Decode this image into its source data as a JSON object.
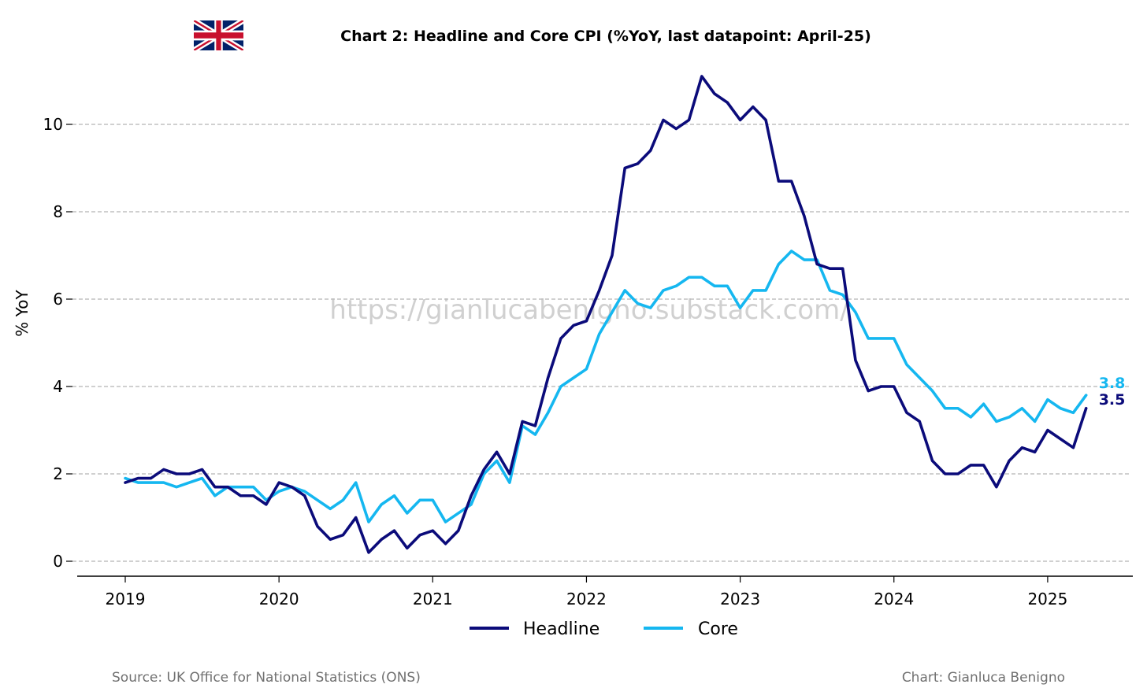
{
  "flag": {
    "icon": "uk-flag-icon",
    "colors": {
      "blue": "#012169",
      "red": "#C8102E",
      "white": "#FFFFFF"
    }
  },
  "footer": {
    "source": "Source: UK Office for National Statistics (ONS)",
    "credit": "Chart: Gianluca Benigno"
  },
  "watermark": "https://gianlucabenigno.substack.com/",
  "chart_data": {
    "type": "line",
    "title": "Chart 2: Headline and Core CPI (%YoY, last datapoint: April-25)",
    "xlabel": "",
    "ylabel": "% YoY",
    "ylim": [
      -0.33,
      11.1
    ],
    "yticks": [
      0,
      2,
      4,
      6,
      8,
      10
    ],
    "xticks": [
      "2019",
      "2020",
      "2021",
      "2022",
      "2023",
      "2024",
      "2025"
    ],
    "x_start": "2019-01",
    "x_end": "2025-04",
    "frequency": "monthly",
    "grid": "horizontal dashed",
    "legend_position": "bottom-center",
    "end_labels": {
      "Headline": "3.5",
      "Core": "3.8"
    },
    "series": [
      {
        "name": "Headline",
        "color": "#0b0b7a",
        "values": [
          1.8,
          1.9,
          1.9,
          2.1,
          2.0,
          2.0,
          2.1,
          1.7,
          1.7,
          1.5,
          1.5,
          1.3,
          1.8,
          1.7,
          1.5,
          0.8,
          0.5,
          0.6,
          1.0,
          0.2,
          0.5,
          0.7,
          0.3,
          0.6,
          0.7,
          0.4,
          0.7,
          1.5,
          2.1,
          2.5,
          2.0,
          3.2,
          3.1,
          4.2,
          5.1,
          5.4,
          5.5,
          6.2,
          7.0,
          9.0,
          9.1,
          9.4,
          10.1,
          9.9,
          10.1,
          11.1,
          10.7,
          10.5,
          10.1,
          10.4,
          10.1,
          8.7,
          8.7,
          7.9,
          6.8,
          6.7,
          6.7,
          4.6,
          3.9,
          4.0,
          4.0,
          3.4,
          3.2,
          2.3,
          2.0,
          2.0,
          2.2,
          2.2,
          1.7,
          2.3,
          2.6,
          2.5,
          3.0,
          2.8,
          2.6,
          3.5
        ]
      },
      {
        "name": "Core",
        "color": "#15b7f0",
        "values": [
          1.9,
          1.8,
          1.8,
          1.8,
          1.7,
          1.8,
          1.9,
          1.5,
          1.7,
          1.7,
          1.7,
          1.4,
          1.6,
          1.7,
          1.6,
          1.4,
          1.2,
          1.4,
          1.8,
          0.9,
          1.3,
          1.5,
          1.1,
          1.4,
          1.4,
          0.9,
          1.1,
          1.3,
          2.0,
          2.3,
          1.8,
          3.1,
          2.9,
          3.4,
          4.0,
          4.2,
          4.4,
          5.2,
          5.7,
          6.2,
          5.9,
          5.8,
          6.2,
          6.3,
          6.5,
          6.5,
          6.3,
          6.3,
          5.8,
          6.2,
          6.2,
          6.8,
          7.1,
          6.9,
          6.9,
          6.2,
          6.1,
          5.7,
          5.1,
          5.1,
          5.1,
          4.5,
          4.2,
          3.9,
          3.5,
          3.5,
          3.3,
          3.6,
          3.2,
          3.3,
          3.5,
          3.2,
          3.7,
          3.5,
          3.4,
          3.8
        ]
      }
    ]
  }
}
